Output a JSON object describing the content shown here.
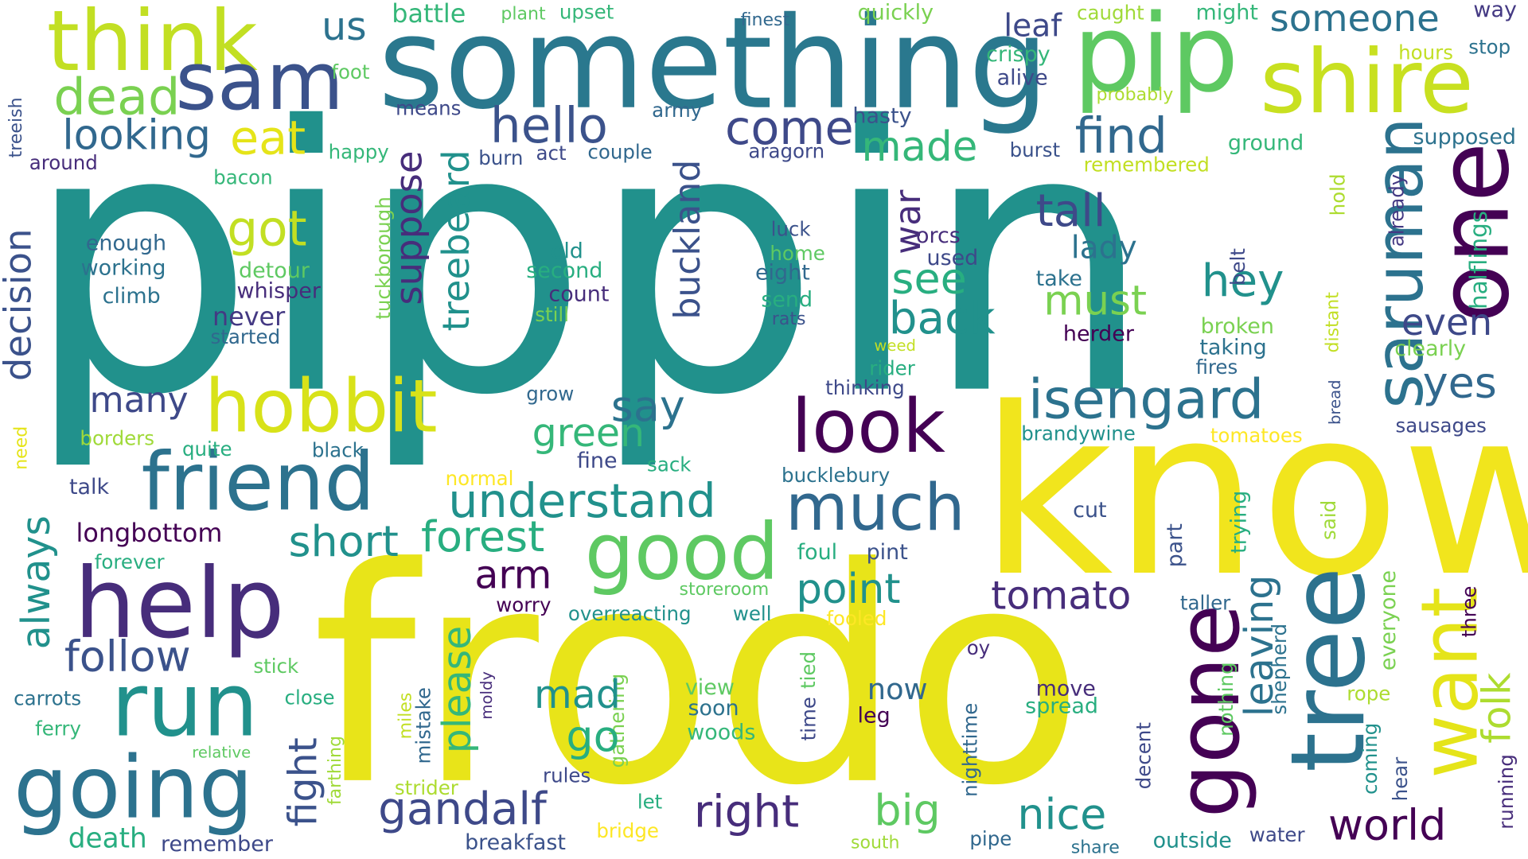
{
  "colors": {
    "background": "#ffffff",
    "palette": [
      "#440154",
      "#472d7b",
      "#3b528b",
      "#2c728e",
      "#21918c",
      "#28ae80",
      "#5ec962",
      "#addc30",
      "#fde725"
    ]
  },
  "words": [
    {
      "text": "pippin",
      "color": "#21918c",
      "rotation": 0
    },
    {
      "text": "frodo",
      "color": "#e8e419",
      "rotation": 0
    },
    {
      "text": "know",
      "color": "#f1e51d",
      "rotation": 0
    },
    {
      "text": "something",
      "color": "#2a788e",
      "rotation": 0
    },
    {
      "text": "pip",
      "color": "#5ec962",
      "rotation": 0
    },
    {
      "text": "think",
      "color": "#c2df23",
      "rotation": 0
    },
    {
      "text": "sam",
      "color": "#3b528b",
      "rotation": 0
    },
    {
      "text": "shire",
      "color": "#c8e020",
      "rotation": 0
    },
    {
      "text": "saruman",
      "color": "#2c728e",
      "rotation": 90
    },
    {
      "text": "one",
      "color": "#440154",
      "rotation": 90
    },
    {
      "text": "tree",
      "color": "#2c728e",
      "rotation": 90
    },
    {
      "text": "gone",
      "color": "#440154",
      "rotation": 90
    },
    {
      "text": "want",
      "color": "#e5e419",
      "rotation": 90
    },
    {
      "text": "help",
      "color": "#472d7b",
      "rotation": 0
    },
    {
      "text": "run",
      "color": "#21918c",
      "rotation": 0
    },
    {
      "text": "going",
      "color": "#2c728e",
      "rotation": 0
    },
    {
      "text": "friend",
      "color": "#2c728e",
      "rotation": 0
    },
    {
      "text": "hobbit",
      "color": "#d8e219",
      "rotation": 0
    },
    {
      "text": "look",
      "color": "#440154",
      "rotation": 0
    },
    {
      "text": "good",
      "color": "#5ec962",
      "rotation": 0
    },
    {
      "text": "much",
      "color": "#31688e",
      "rotation": 0
    },
    {
      "text": "isengard",
      "color": "#2c728e",
      "rotation": 0
    },
    {
      "text": "dead",
      "color": "#7ad151",
      "rotation": 0
    },
    {
      "text": "eat",
      "color": "#e5e419",
      "rotation": 0
    },
    {
      "text": "looking",
      "color": "#31688e",
      "rotation": 0
    },
    {
      "text": "hello",
      "color": "#3b528b",
      "rotation": 0
    },
    {
      "text": "come",
      "color": "#3e4989",
      "rotation": 0
    },
    {
      "text": "made",
      "color": "#35b779",
      "rotation": 0
    },
    {
      "text": "find",
      "color": "#31688e",
      "rotation": 0
    },
    {
      "text": "us",
      "color": "#2c728e",
      "rotation": 0
    },
    {
      "text": "battle",
      "color": "#35b779",
      "rotation": 0
    },
    {
      "text": "plant",
      "color": "#5ec962",
      "rotation": 0
    },
    {
      "text": "upset",
      "color": "#35b779",
      "rotation": 0
    },
    {
      "text": "finest",
      "color": "#31688e",
      "rotation": 0
    },
    {
      "text": "quickly",
      "color": "#7ad151",
      "rotation": 0
    },
    {
      "text": "leaf",
      "color": "#3e4989",
      "rotation": 0
    },
    {
      "text": "caught",
      "color": "#a0da39",
      "rotation": 0
    },
    {
      "text": "might",
      "color": "#35b779",
      "rotation": 0
    },
    {
      "text": "someone",
      "color": "#2c728e",
      "rotation": 0
    },
    {
      "text": "way",
      "color": "#443983",
      "rotation": 0
    },
    {
      "text": "foot",
      "color": "#5ec962",
      "rotation": 0
    },
    {
      "text": "crispy",
      "color": "#35b779",
      "rotation": 0
    },
    {
      "text": "alive",
      "color": "#3e4989",
      "rotation": 0
    },
    {
      "text": "hours",
      "color": "#c2df23",
      "rotation": 0
    },
    {
      "text": "stop",
      "color": "#2c728e",
      "rotation": 0
    },
    {
      "text": "probably",
      "color": "#addc30",
      "rotation": 0
    },
    {
      "text": "means",
      "color": "#3e4989",
      "rotation": 0
    },
    {
      "text": "army",
      "color": "#31688e",
      "rotation": 0
    },
    {
      "text": "hasty",
      "color": "#3b528b",
      "rotation": 0
    },
    {
      "text": "aragorn",
      "color": "#3e4989",
      "rotation": 0
    },
    {
      "text": "burst",
      "color": "#3b528b",
      "rotation": 0
    },
    {
      "text": "ground",
      "color": "#35b779",
      "rotation": 0
    },
    {
      "text": "supposed",
      "color": "#2c728e",
      "rotation": 0
    },
    {
      "text": "remembered",
      "color": "#c2df23",
      "rotation": 0
    },
    {
      "text": "treeish",
      "color": "#3b528b",
      "rotation": 90
    },
    {
      "text": "around",
      "color": "#472d7b",
      "rotation": 0
    },
    {
      "text": "happy",
      "color": "#35b779",
      "rotation": 0
    },
    {
      "text": "burn",
      "color": "#3b528b",
      "rotation": 0
    },
    {
      "text": "act",
      "color": "#3e4989",
      "rotation": 0
    },
    {
      "text": "couple",
      "color": "#31688e",
      "rotation": 0
    },
    {
      "text": "bacon",
      "color": "#35b779",
      "rotation": 0
    },
    {
      "text": "decision",
      "color": "#3b528b",
      "rotation": 90
    },
    {
      "text": "got",
      "color": "#c2df23",
      "rotation": 0
    },
    {
      "text": "suppose",
      "color": "#472d7b",
      "rotation": 90
    },
    {
      "text": "treebeard",
      "color": "#21918c",
      "rotation": 90
    },
    {
      "text": "buckland",
      "color": "#3b528b",
      "rotation": 90
    },
    {
      "text": "war",
      "color": "#472d7b",
      "rotation": 90
    },
    {
      "text": "tall",
      "color": "#3e4989",
      "rotation": 0
    },
    {
      "text": "lady",
      "color": "#2c728e",
      "rotation": 0
    },
    {
      "text": "take",
      "color": "#2c728e",
      "rotation": 0
    },
    {
      "text": "hey",
      "color": "#21918c",
      "rotation": 0
    },
    {
      "text": "belt",
      "color": "#3e4989",
      "rotation": 90
    },
    {
      "text": "hold",
      "color": "#addc30",
      "rotation": 90
    },
    {
      "text": "already",
      "color": "#443983",
      "rotation": 90
    },
    {
      "text": "halflings",
      "color": "#28ae80",
      "rotation": 90
    },
    {
      "text": "enough",
      "color": "#31688e",
      "rotation": 0
    },
    {
      "text": "working",
      "color": "#2c728e",
      "rotation": 0
    },
    {
      "text": "climb",
      "color": "#2c728e",
      "rotation": 0
    },
    {
      "text": "detour",
      "color": "#5ec962",
      "rotation": 0
    },
    {
      "text": "whisper",
      "color": "#472d7b",
      "rotation": 0
    },
    {
      "text": "tuckborough",
      "color": "#7ad151",
      "rotation": 90
    },
    {
      "text": "old",
      "color": "#21918c",
      "rotation": 0
    },
    {
      "text": "second",
      "color": "#28ae80",
      "rotation": 0
    },
    {
      "text": "count",
      "color": "#472d7b",
      "rotation": 0
    },
    {
      "text": "still",
      "color": "#7ad151",
      "rotation": 0
    },
    {
      "text": "luck",
      "color": "#3b528b",
      "rotation": 0
    },
    {
      "text": "home",
      "color": "#5ec962",
      "rotation": 0
    },
    {
      "text": "eight",
      "color": "#31688e",
      "rotation": 0
    },
    {
      "text": "send",
      "color": "#28ae80",
      "rotation": 0
    },
    {
      "text": "rats",
      "color": "#3b528b",
      "rotation": 0
    },
    {
      "text": "orcs",
      "color": "#472d7b",
      "rotation": 0
    },
    {
      "text": "used",
      "color": "#3e4989",
      "rotation": 0
    },
    {
      "text": "see",
      "color": "#28ae80",
      "rotation": 0
    },
    {
      "text": "back",
      "color": "#21918c",
      "rotation": 0
    },
    {
      "text": "must",
      "color": "#7ad151",
      "rotation": 0
    },
    {
      "text": "herder",
      "color": "#440154",
      "rotation": 0
    },
    {
      "text": "broken",
      "color": "#7ad151",
      "rotation": 0
    },
    {
      "text": "taking",
      "color": "#2c728e",
      "rotation": 0
    },
    {
      "text": "fires",
      "color": "#31688e",
      "rotation": 0
    },
    {
      "text": "even",
      "color": "#3e4989",
      "rotation": 0
    },
    {
      "text": "clearly",
      "color": "#7ad151",
      "rotation": 0
    },
    {
      "text": "distant",
      "color": "#c2df23",
      "rotation": 90
    },
    {
      "text": "never",
      "color": "#443983",
      "rotation": 0
    },
    {
      "text": "started",
      "color": "#31688e",
      "rotation": 0
    },
    {
      "text": "many",
      "color": "#3e4989",
      "rotation": 0
    },
    {
      "text": "say",
      "color": "#2c728e",
      "rotation": 0
    },
    {
      "text": "green",
      "color": "#35b779",
      "rotation": 0
    },
    {
      "text": "grow",
      "color": "#31688e",
      "rotation": 0
    },
    {
      "text": "weed",
      "color": "#c2df23",
      "rotation": 0
    },
    {
      "text": "rider",
      "color": "#28ae80",
      "rotation": 0
    },
    {
      "text": "thinking",
      "color": "#3e4989",
      "rotation": 0
    },
    {
      "text": "brandywine",
      "color": "#21918c",
      "rotation": 0
    },
    {
      "text": "tomatoes",
      "color": "#fde725",
      "rotation": 0
    },
    {
      "text": "bread",
      "color": "#3b528b",
      "rotation": 90
    },
    {
      "text": "yes",
      "color": "#31688e",
      "rotation": 0
    },
    {
      "text": "sausages",
      "color": "#3e4989",
      "rotation": 0
    },
    {
      "text": "need",
      "color": "#e5e419",
      "rotation": 90
    },
    {
      "text": "borders",
      "color": "#a0da39",
      "rotation": 0
    },
    {
      "text": "quite",
      "color": "#28ae80",
      "rotation": 0
    },
    {
      "text": "black",
      "color": "#2c728e",
      "rotation": 0
    },
    {
      "text": "fine",
      "color": "#3e4989",
      "rotation": 0
    },
    {
      "text": "sack",
      "color": "#28ae80",
      "rotation": 0
    },
    {
      "text": "bucklebury",
      "color": "#2c728e",
      "rotation": 0
    },
    {
      "text": "normal",
      "color": "#fde725",
      "rotation": 0
    },
    {
      "text": "understand",
      "color": "#21918c",
      "rotation": 0
    },
    {
      "text": "talk",
      "color": "#3e4989",
      "rotation": 0
    },
    {
      "text": "always",
      "color": "#21918c",
      "rotation": 90
    },
    {
      "text": "longbottom",
      "color": "#440154",
      "rotation": 0
    },
    {
      "text": "short",
      "color": "#21918c",
      "rotation": 0
    },
    {
      "text": "forest",
      "color": "#28ae80",
      "rotation": 0
    },
    {
      "text": "arm",
      "color": "#440154",
      "rotation": 0
    },
    {
      "text": "cut",
      "color": "#3b528b",
      "rotation": 0
    },
    {
      "text": "part",
      "color": "#3b528b",
      "rotation": 90
    },
    {
      "text": "trying",
      "color": "#28ae80",
      "rotation": 90
    },
    {
      "text": "said",
      "color": "#a0da39",
      "rotation": 90
    },
    {
      "text": "forever",
      "color": "#28ae80",
      "rotation": 0
    },
    {
      "text": "foul",
      "color": "#28ae80",
      "rotation": 0
    },
    {
      "text": "pint",
      "color": "#3b528b",
      "rotation": 0
    },
    {
      "text": "point",
      "color": "#21918c",
      "rotation": 0
    },
    {
      "text": "tomato",
      "color": "#472d7b",
      "rotation": 0
    },
    {
      "text": "leaving",
      "color": "#2c728e",
      "rotation": 90
    },
    {
      "text": "folk",
      "color": "#addc30",
      "rotation": 90
    },
    {
      "text": "storeroom",
      "color": "#5ec962",
      "rotation": 0
    },
    {
      "text": "worry",
      "color": "#440154",
      "rotation": 0
    },
    {
      "text": "overreacting",
      "color": "#21918c",
      "rotation": 0
    },
    {
      "text": "well",
      "color": "#21918c",
      "rotation": 0
    },
    {
      "text": "fooled",
      "color": "#fde725",
      "rotation": 0
    },
    {
      "text": "taller",
      "color": "#31688e",
      "rotation": 0
    },
    {
      "text": "everyone",
      "color": "#7ad151",
      "rotation": 90
    },
    {
      "text": "three",
      "color": "#440154",
      "rotation": 90
    },
    {
      "text": "follow",
      "color": "#3b528b",
      "rotation": 0
    },
    {
      "text": "please",
      "color": "#35b779",
      "rotation": 90
    },
    {
      "text": "shepherd",
      "color": "#2c728e",
      "rotation": 90
    },
    {
      "text": "stick",
      "color": "#5ec962",
      "rotation": 0
    },
    {
      "text": "oy",
      "color": "#472d7b",
      "rotation": 0
    },
    {
      "text": "carrots",
      "color": "#2c728e",
      "rotation": 0
    },
    {
      "text": "close",
      "color": "#28ae80",
      "rotation": 0
    },
    {
      "text": "ferry",
      "color": "#35b779",
      "rotation": 0
    },
    {
      "text": "miles",
      "color": "#c2df23",
      "rotation": 90
    },
    {
      "text": "mistake",
      "color": "#31688e",
      "rotation": 90
    },
    {
      "text": "moldy",
      "color": "#472d7b",
      "rotation": 90
    },
    {
      "text": "gathering",
      "color": "#7ad151",
      "rotation": 90
    },
    {
      "text": "mad",
      "color": "#21918c",
      "rotation": 0
    },
    {
      "text": "go",
      "color": "#28ae80",
      "rotation": 0
    },
    {
      "text": "view",
      "color": "#5ec962",
      "rotation": 0
    },
    {
      "text": "soon",
      "color": "#2c728e",
      "rotation": 0
    },
    {
      "text": "woods",
      "color": "#35b779",
      "rotation": 0
    },
    {
      "text": "now",
      "color": "#31688e",
      "rotation": 0
    },
    {
      "text": "leg",
      "color": "#440154",
      "rotation": 0
    },
    {
      "text": "move",
      "color": "#472d7b",
      "rotation": 0
    },
    {
      "text": "spread",
      "color": "#28ae80",
      "rotation": 0
    },
    {
      "text": "time",
      "color": "#3e4989",
      "rotation": 90
    },
    {
      "text": "tied",
      "color": "#5ec962",
      "rotation": 90
    },
    {
      "text": "nothing",
      "color": "#5ec962",
      "rotation": 90
    },
    {
      "text": "rope",
      "color": "#addc30",
      "rotation": 0
    },
    {
      "text": "coming",
      "color": "#21918c",
      "rotation": 90
    },
    {
      "text": "relative",
      "color": "#5ec962",
      "rotation": 0
    },
    {
      "text": "fight",
      "color": "#3b528b",
      "rotation": 90
    },
    {
      "text": "farthing",
      "color": "#a0da39",
      "rotation": 90
    },
    {
      "text": "nighttime",
      "color": "#31688e",
      "rotation": 90
    },
    {
      "text": "decent",
      "color": "#3e4989",
      "rotation": 90
    },
    {
      "text": "hear",
      "color": "#3b528b",
      "rotation": 90
    },
    {
      "text": "running",
      "color": "#472d7b",
      "rotation": 90
    },
    {
      "text": "strider",
      "color": "#addc30",
      "rotation": 0
    },
    {
      "text": "rules",
      "color": "#3e4989",
      "rotation": 0
    },
    {
      "text": "let",
      "color": "#28ae80",
      "rotation": 0
    },
    {
      "text": "bridge",
      "color": "#fde725",
      "rotation": 0
    },
    {
      "text": "gandalf",
      "color": "#3e4989",
      "rotation": 0
    },
    {
      "text": "right",
      "color": "#472d7b",
      "rotation": 0
    },
    {
      "text": "big",
      "color": "#5ec962",
      "rotation": 0
    },
    {
      "text": "nice",
      "color": "#21918c",
      "rotation": 0
    },
    {
      "text": "world",
      "color": "#440154",
      "rotation": 0
    },
    {
      "text": "death",
      "color": "#28ae80",
      "rotation": 0
    },
    {
      "text": "remember",
      "color": "#3e4989",
      "rotation": 0
    },
    {
      "text": "breakfast",
      "color": "#3b528b",
      "rotation": 0
    },
    {
      "text": "south",
      "color": "#a0da39",
      "rotation": 0
    },
    {
      "text": "pipe",
      "color": "#31688e",
      "rotation": 0
    },
    {
      "text": "share",
      "color": "#2c728e",
      "rotation": 0
    },
    {
      "text": "outside",
      "color": "#21918c",
      "rotation": 0
    },
    {
      "text": "water",
      "color": "#3e4989",
      "rotation": 0
    }
  ]
}
